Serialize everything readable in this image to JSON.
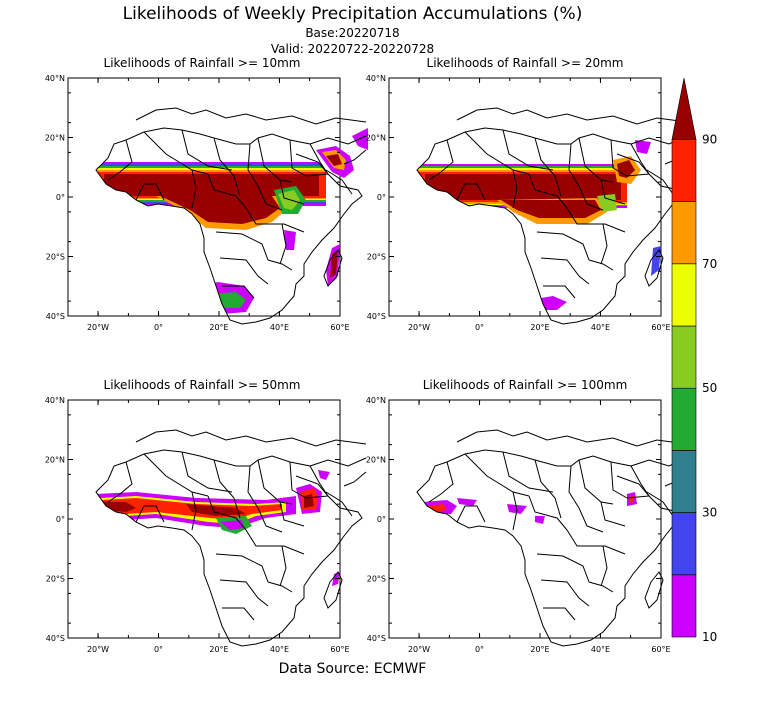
{
  "header": {
    "title": "Likelihoods of Weekly Precipitation Accumulations (%)",
    "base": "Base:20220718",
    "valid": "Valid: 20220722-20220728"
  },
  "footer": "Data Source: ECMWF",
  "panels": [
    {
      "title": "Likelihoods of Rainfall >= 10mm"
    },
    {
      "title": "Likelihoods of Rainfall >= 20mm"
    },
    {
      "title": "Likelihoods of Rainfall >= 50mm"
    },
    {
      "title": "Likelihoods of Rainfall >= 100mm"
    }
  ],
  "axes": {
    "lat_labels": [
      "40°N",
      "20°N",
      "0°",
      "20°S",
      "40°S"
    ],
    "lon_labels": [
      "20°W",
      "0°",
      "20°E",
      "40°E",
      "60°E"
    ]
  },
  "colorbar": {
    "labels": [
      "90",
      "70",
      "50",
      "30",
      "10"
    ],
    "bins": [
      {
        "range": "10-20",
        "color": "#cc00ff"
      },
      {
        "range": "20-30",
        "color": "#4444ee"
      },
      {
        "range": "30-40",
        "color": "#2f7f8f"
      },
      {
        "range": "40-50",
        "color": "#22aa33"
      },
      {
        "range": "50-60",
        "color": "#88cc22"
      },
      {
        "range": "60-70",
        "color": "#eeff00"
      },
      {
        "range": "70-80",
        "color": "#ff9900"
      },
      {
        "range": "80-90",
        "color": "#ff2200"
      },
      {
        "range": ">90",
        "color": "#990000"
      }
    ]
  }
}
